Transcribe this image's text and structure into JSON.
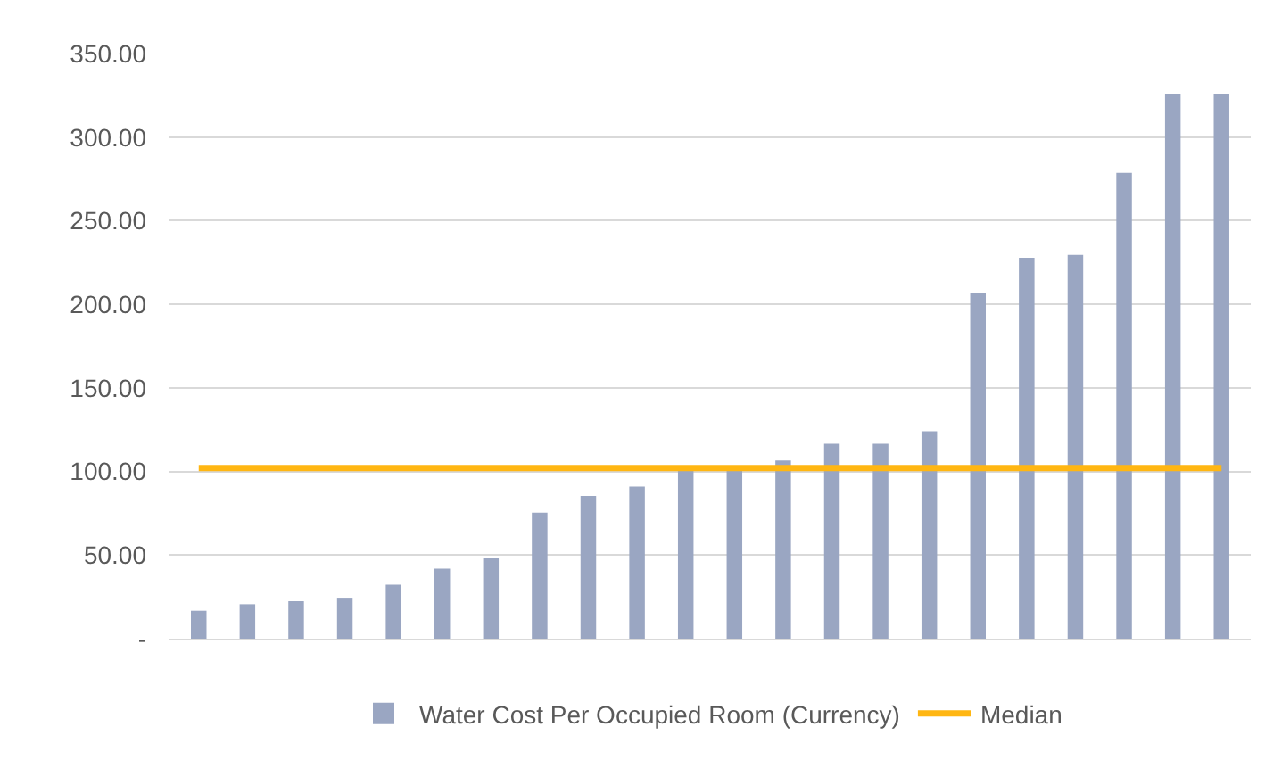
{
  "chart_data": {
    "type": "bar",
    "categories": [
      null,
      null,
      null,
      null,
      null,
      null,
      null,
      null,
      null,
      null,
      null,
      null,
      null,
      null,
      null,
      null,
      null,
      null,
      null,
      null,
      null,
      null
    ],
    "series": [
      {
        "name": "Water Cost Per Occupied Room (Currency)",
        "color": "#9aa6c2",
        "values": [
          16.7,
          20.6,
          22.4,
          24.5,
          32.3,
          41.9,
          48,
          75.3,
          85.3,
          91,
          101,
          102,
          106.6,
          116.6,
          116.6,
          124,
          206.5,
          227.8,
          229.6,
          278.6,
          326,
          326
        ]
      },
      {
        "name": "Median",
        "type": "line",
        "color": "#ffb612",
        "marker": "none",
        "values": [
          102,
          102,
          102,
          102,
          102,
          102,
          102,
          102,
          102,
          102,
          102,
          102,
          102,
          102,
          102,
          102,
          102,
          102,
          102,
          102,
          102,
          102
        ]
      }
    ],
    "ylim": [
      0,
      350
    ],
    "yticks": [
      {
        "value": 0,
        "label": "-"
      },
      {
        "value": 50,
        "label": "50.00"
      },
      {
        "value": 100,
        "label": "100.00"
      },
      {
        "value": 150,
        "label": "150.00"
      },
      {
        "value": 200,
        "label": "200.00"
      },
      {
        "value": 250,
        "label": "250.00"
      },
      {
        "value": 300,
        "label": "300.00"
      },
      {
        "value": 350,
        "label": "350.00"
      }
    ],
    "grid": "y",
    "legend": "bottom"
  }
}
